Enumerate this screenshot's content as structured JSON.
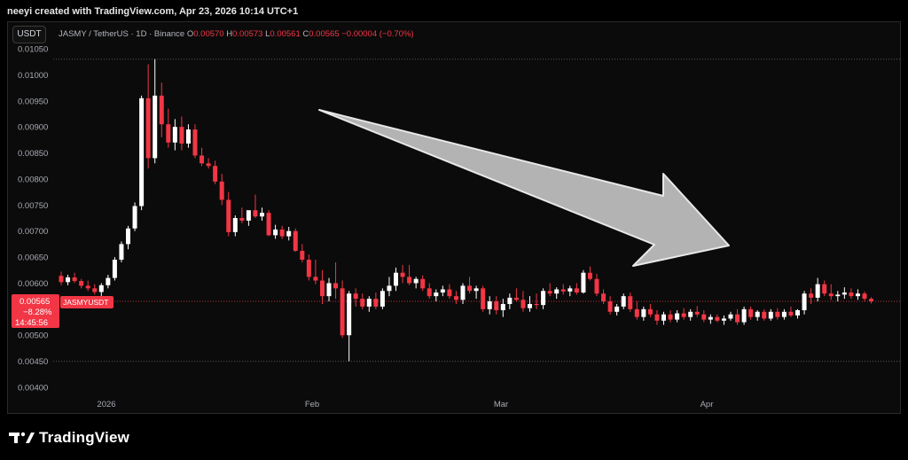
{
  "header": {
    "caption": "neeyi created with TradingView.com, Apr 23, 2026 10:14 UTC+1"
  },
  "legend": {
    "currency_button": "USDT",
    "pair": "JASMY / TetherUS · 1D · Binance",
    "o_label": "O",
    "o_value": "0.00570",
    "h_label": "H",
    "h_value": "0.00573",
    "l_label": "L",
    "l_value": "0.00561",
    "c_label": "C",
    "c_value": "0.00565",
    "change": "−0.00004 (−0.70%)"
  },
  "price_marker": {
    "price": "0.00565",
    "change_pct": "−8.28%",
    "countdown": "14:45:56",
    "symbol": "JASMYUSDT"
  },
  "brand": {
    "name": "TradingView"
  },
  "colors": {
    "up": "#ffffff",
    "down": "#f23645",
    "arrow_fill": "#b3b3b3",
    "background": "#0b0b0b"
  },
  "chart_data": {
    "type": "candlestick",
    "ylim": [
      0.004,
      0.0105
    ],
    "yticks": [
      "0.01050",
      "0.01000",
      "0.00950",
      "0.00900",
      "0.00850",
      "0.00800",
      "0.00750",
      "0.00700",
      "0.00650",
      "0.00600",
      "0.00550",
      "0.00500",
      "0.00450",
      "0.00400"
    ],
    "xticks": [
      "2026",
      "Feb",
      "Mar",
      "Apr"
    ],
    "reference_lines": {
      "dotted_levels": [
        0.0103,
        0.0045
      ],
      "current_price": 0.00565
    },
    "annotation": "downward arrow",
    "candles": [
      [
        0.00614,
        0.00622,
        0.00596,
        0.00602
      ],
      [
        0.00602,
        0.00616,
        0.00596,
        0.00611
      ],
      [
        0.00611,
        0.0062,
        0.006,
        0.00604
      ],
      [
        0.00604,
        0.00608,
        0.0059,
        0.00595
      ],
      [
        0.00595,
        0.00605,
        0.00585,
        0.0059
      ],
      [
        0.0059,
        0.00598,
        0.00578,
        0.00583
      ],
      [
        0.00583,
        0.006,
        0.00575,
        0.00596
      ],
      [
        0.00596,
        0.00616,
        0.0059,
        0.0061
      ],
      [
        0.0061,
        0.0065,
        0.00605,
        0.00645
      ],
      [
        0.00645,
        0.0068,
        0.0064,
        0.00675
      ],
      [
        0.00675,
        0.0071,
        0.00665,
        0.00705
      ],
      [
        0.00705,
        0.00755,
        0.007,
        0.00748
      ],
      [
        0.00748,
        0.0096,
        0.0074,
        0.00955
      ],
      [
        0.00955,
        0.0102,
        0.0082,
        0.0084
      ],
      [
        0.0084,
        0.0103,
        0.0083,
        0.0096
      ],
      [
        0.0096,
        0.00985,
        0.0088,
        0.00905
      ],
      [
        0.00905,
        0.00935,
        0.0086,
        0.0087
      ],
      [
        0.0087,
        0.00915,
        0.00855,
        0.009
      ],
      [
        0.009,
        0.0092,
        0.00855,
        0.00868
      ],
      [
        0.00868,
        0.00905,
        0.0086,
        0.00895
      ],
      [
        0.00895,
        0.00905,
        0.0084,
        0.00845
      ],
      [
        0.00845,
        0.0086,
        0.00825,
        0.0083
      ],
      [
        0.0083,
        0.0084,
        0.0082,
        0.00825
      ],
      [
        0.00825,
        0.00835,
        0.0079,
        0.00795
      ],
      [
        0.00795,
        0.0081,
        0.0075,
        0.0076
      ],
      [
        0.0076,
        0.00775,
        0.0069,
        0.00698
      ],
      [
        0.00698,
        0.0073,
        0.0069,
        0.00725
      ],
      [
        0.00725,
        0.00745,
        0.00715,
        0.0072
      ],
      [
        0.0072,
        0.00735,
        0.0071,
        0.0074
      ],
      [
        0.0074,
        0.0077,
        0.00725,
        0.00728
      ],
      [
        0.00728,
        0.00745,
        0.0072,
        0.00735
      ],
      [
        0.00735,
        0.0074,
        0.0069,
        0.00692
      ],
      [
        0.00692,
        0.00712,
        0.00685,
        0.00703
      ],
      [
        0.00703,
        0.0071,
        0.00685,
        0.0069
      ],
      [
        0.0069,
        0.00708,
        0.00682,
        0.007
      ],
      [
        0.007,
        0.00705,
        0.0066,
        0.00662
      ],
      [
        0.00662,
        0.00675,
        0.0064,
        0.00645
      ],
      [
        0.00645,
        0.00655,
        0.00605,
        0.00612
      ],
      [
        0.00612,
        0.00645,
        0.00598,
        0.00605
      ],
      [
        0.00605,
        0.00625,
        0.0056,
        0.00575
      ],
      [
        0.00575,
        0.0061,
        0.00565,
        0.006
      ],
      [
        0.006,
        0.0064,
        0.0057,
        0.0059
      ],
      [
        0.0059,
        0.00605,
        0.00495,
        0.005
      ],
      [
        0.005,
        0.00585,
        0.0045,
        0.0058
      ],
      [
        0.0058,
        0.0059,
        0.00555,
        0.0057
      ],
      [
        0.0057,
        0.0058,
        0.0055,
        0.00555
      ],
      [
        0.00555,
        0.00575,
        0.00545,
        0.0057
      ],
      [
        0.0057,
        0.00582,
        0.0055,
        0.00555
      ],
      [
        0.00555,
        0.0059,
        0.0055,
        0.00585
      ],
      [
        0.00585,
        0.00612,
        0.00575,
        0.00595
      ],
      [
        0.00595,
        0.0063,
        0.00585,
        0.0062
      ],
      [
        0.0062,
        0.00635,
        0.006,
        0.00612
      ],
      [
        0.00612,
        0.00635,
        0.00596,
        0.006
      ],
      [
        0.006,
        0.00612,
        0.0059,
        0.00608
      ],
      [
        0.00608,
        0.00615,
        0.00585,
        0.0059
      ],
      [
        0.0059,
        0.006,
        0.0057,
        0.00575
      ],
      [
        0.00575,
        0.00588,
        0.00565,
        0.00582
      ],
      [
        0.00582,
        0.00595,
        0.00575,
        0.00588
      ],
      [
        0.00588,
        0.00598,
        0.0057,
        0.00575
      ],
      [
        0.00575,
        0.00585,
        0.0056,
        0.00568
      ],
      [
        0.00568,
        0.006,
        0.0056,
        0.00595
      ],
      [
        0.00595,
        0.00612,
        0.0058,
        0.00585
      ],
      [
        0.00585,
        0.00595,
        0.0057,
        0.0059
      ],
      [
        0.0059,
        0.00595,
        0.00545,
        0.0055
      ],
      [
        0.0055,
        0.00575,
        0.0054,
        0.00565
      ],
      [
        0.00565,
        0.00575,
        0.0054,
        0.00548
      ],
      [
        0.00548,
        0.0057,
        0.00535,
        0.0056
      ],
      [
        0.0056,
        0.0058,
        0.0055,
        0.00572
      ],
      [
        0.00572,
        0.0059,
        0.00565,
        0.00568
      ],
      [
        0.00568,
        0.00585,
        0.00545,
        0.00552
      ],
      [
        0.00552,
        0.00575,
        0.00545,
        0.0056
      ],
      [
        0.0056,
        0.0058,
        0.0055,
        0.00558
      ],
      [
        0.00558,
        0.0059,
        0.0055,
        0.00585
      ],
      [
        0.00585,
        0.006,
        0.00575,
        0.0058
      ],
      [
        0.0058,
        0.00592,
        0.0057,
        0.00588
      ],
      [
        0.00588,
        0.00598,
        0.00578,
        0.00584
      ],
      [
        0.00584,
        0.00595,
        0.00575,
        0.0059
      ],
      [
        0.0059,
        0.006,
        0.00578,
        0.00582
      ],
      [
        0.00582,
        0.00625,
        0.0058,
        0.0062
      ],
      [
        0.0062,
        0.00632,
        0.00605,
        0.00608
      ],
      [
        0.00608,
        0.00618,
        0.00575,
        0.0058
      ],
      [
        0.0058,
        0.00588,
        0.0056,
        0.00565
      ],
      [
        0.00565,
        0.00575,
        0.0054,
        0.00545
      ],
      [
        0.00545,
        0.0056,
        0.00538,
        0.00555
      ],
      [
        0.00555,
        0.0058,
        0.0055,
        0.00575
      ],
      [
        0.00575,
        0.00582,
        0.00545,
        0.0055
      ],
      [
        0.0055,
        0.00565,
        0.0053,
        0.00535
      ],
      [
        0.00535,
        0.00555,
        0.00528,
        0.0055
      ],
      [
        0.0055,
        0.0056,
        0.00535,
        0.0054
      ],
      [
        0.0054,
        0.00548,
        0.0052,
        0.00528
      ],
      [
        0.00528,
        0.00545,
        0.0052,
        0.0054
      ],
      [
        0.0054,
        0.00548,
        0.00525,
        0.0053
      ],
      [
        0.0053,
        0.00548,
        0.00525,
        0.00542
      ],
      [
        0.00542,
        0.00552,
        0.0053,
        0.00535
      ],
      [
        0.00535,
        0.0055,
        0.00528,
        0.00545
      ],
      [
        0.00545,
        0.00556,
        0.00535,
        0.0054
      ],
      [
        0.0054,
        0.00548,
        0.00525,
        0.0053
      ],
      [
        0.0053,
        0.0054,
        0.00522,
        0.00535
      ],
      [
        0.00535,
        0.0054,
        0.00525,
        0.00528
      ],
      [
        0.00528,
        0.00538,
        0.0052,
        0.00532
      ],
      [
        0.00532,
        0.00545,
        0.00528,
        0.0054
      ],
      [
        0.0054,
        0.0055,
        0.0052,
        0.00525
      ],
      [
        0.00525,
        0.00555,
        0.0052,
        0.0055
      ],
      [
        0.0055,
        0.00555,
        0.0053,
        0.00535
      ],
      [
        0.00535,
        0.00548,
        0.00528,
        0.00545
      ],
      [
        0.00545,
        0.0055,
        0.00528,
        0.00532
      ],
      [
        0.00532,
        0.0055,
        0.00528,
        0.00545
      ],
      [
        0.00545,
        0.00552,
        0.0053,
        0.00535
      ],
      [
        0.00535,
        0.0055,
        0.0053,
        0.00545
      ],
      [
        0.00545,
        0.00555,
        0.00535,
        0.00538
      ],
      [
        0.00538,
        0.0055,
        0.00532,
        0.00548
      ],
      [
        0.00548,
        0.00585,
        0.0054,
        0.0058
      ],
      [
        0.0058,
        0.0059,
        0.0056,
        0.00572
      ],
      [
        0.00572,
        0.0061,
        0.00565,
        0.00598
      ],
      [
        0.00598,
        0.00605,
        0.00575,
        0.0058
      ],
      [
        0.0058,
        0.00598,
        0.00568,
        0.00575
      ],
      [
        0.00575,
        0.00585,
        0.00565,
        0.00578
      ],
      [
        0.00578,
        0.00592,
        0.0057,
        0.00582
      ],
      [
        0.00582,
        0.0059,
        0.0057,
        0.00575
      ],
      [
        0.00575,
        0.00588,
        0.00568,
        0.0058
      ],
      [
        0.0058,
        0.00584,
        0.00565,
        0.0057
      ],
      [
        0.0057,
        0.00573,
        0.00561,
        0.00565
      ]
    ]
  }
}
